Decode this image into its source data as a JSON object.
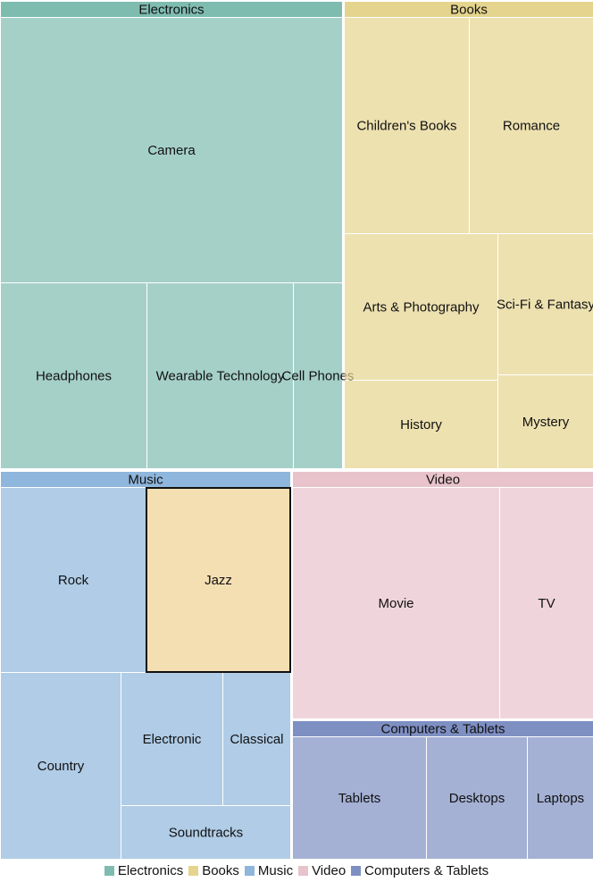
{
  "chart_data": {
    "type": "treemap",
    "groups": [
      {
        "name": "Electronics",
        "color": "#7fbcb0",
        "items": [
          {
            "label": "Camera"
          },
          {
            "label": "Headphones"
          },
          {
            "label": "Wearable Technology"
          },
          {
            "label": "Cell Phones"
          }
        ]
      },
      {
        "name": "Books",
        "color": "#e5d48e",
        "items": [
          {
            "label": "Children's Books"
          },
          {
            "label": "Romance"
          },
          {
            "label": "Arts & Photography"
          },
          {
            "label": "Sci-Fi & Fantasy"
          },
          {
            "label": "History"
          },
          {
            "label": "Mystery"
          }
        ]
      },
      {
        "name": "Music",
        "color": "#8fb6dc",
        "items": [
          {
            "label": "Rock"
          },
          {
            "label": "Jazz",
            "highlighted": true,
            "highlight_color": "#f4dfb3"
          },
          {
            "label": "Country"
          },
          {
            "label": "Electronic"
          },
          {
            "label": "Classical"
          },
          {
            "label": "Soundtracks"
          }
        ]
      },
      {
        "name": "Video",
        "color": "#e8c3cc",
        "items": [
          {
            "label": "Movie"
          },
          {
            "label": "TV"
          }
        ]
      },
      {
        "name": "Computers & Tablets",
        "color": "#7e8fc2",
        "items": [
          {
            "label": "Tablets"
          },
          {
            "label": "Desktops"
          },
          {
            "label": "Laptops"
          }
        ]
      }
    ],
    "legend": {
      "placement": "bottom",
      "entries": [
        {
          "label": "Electronics",
          "color": "#7fbcb0"
        },
        {
          "label": "Books",
          "color": "#e5d48e"
        },
        {
          "label": "Music",
          "color": "#8fb6dc"
        },
        {
          "label": "Video",
          "color": "#e8c3cc"
        },
        {
          "label": "Computers & Tablets",
          "color": "#7e8fc2"
        }
      ]
    }
  }
}
